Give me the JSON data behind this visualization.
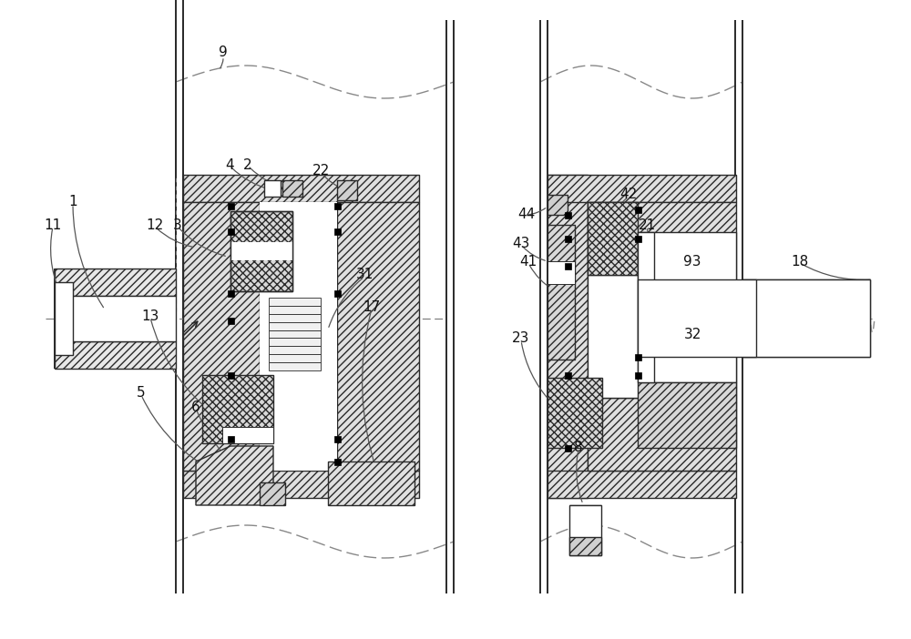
{
  "background_color": "#ffffff",
  "line_color": "#2a2a2a",
  "fig_width": 10.0,
  "fig_height": 7.02,
  "hatch_diagonal": "////",
  "hatch_cross": "xxxx",
  "hatch_spring": "||||"
}
